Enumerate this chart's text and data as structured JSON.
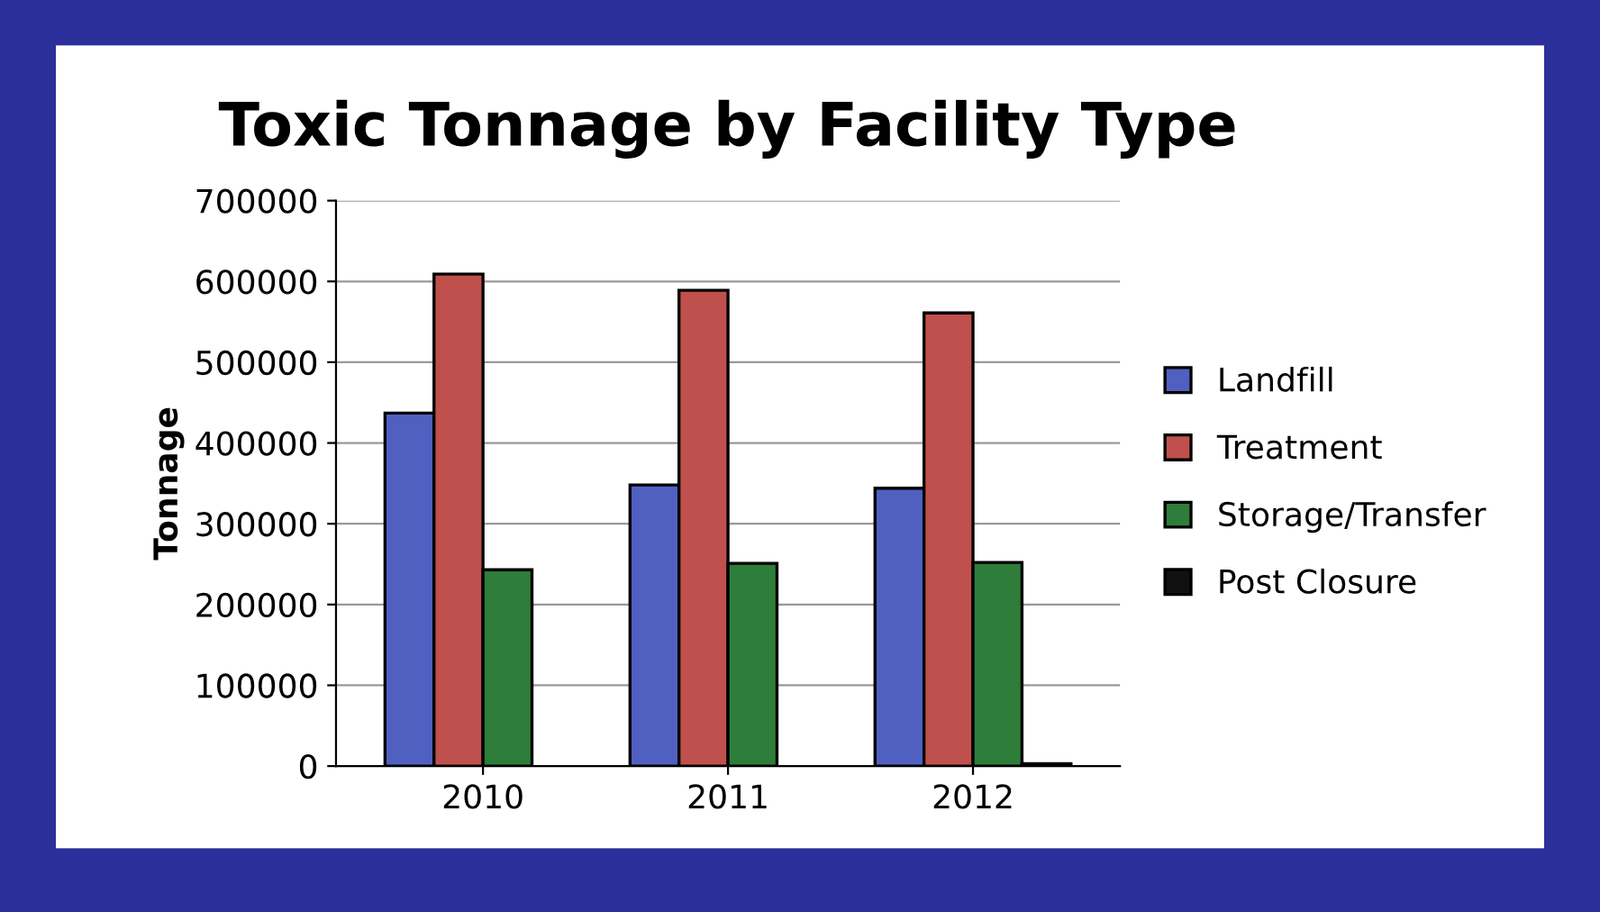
{
  "chart_data": {
    "type": "bar",
    "title": "Toxic Tonnage by Facility Type",
    "ylabel": "Tonnage",
    "categories": [
      "2010",
      "2011",
      "2012"
    ],
    "series": [
      {
        "name": "Landfill",
        "color": "#5060c0",
        "values": [
          437000,
          348000,
          344000
        ]
      },
      {
        "name": "Treatment",
        "color": "#c0504d",
        "values": [
          609000,
          589000,
          561000
        ]
      },
      {
        "name": "Storage/Transfer",
        "color": "#2e7d3a",
        "values": [
          243000,
          251000,
          252000
        ]
      },
      {
        "name": "Post Closure",
        "color": "#111111",
        "values": [
          null,
          null,
          3000
        ]
      }
    ],
    "ylim": [
      0,
      700000
    ],
    "yticks": [
      0,
      100000,
      200000,
      300000,
      400000,
      500000,
      600000,
      700000
    ],
    "grid": "y",
    "legend": "right"
  }
}
